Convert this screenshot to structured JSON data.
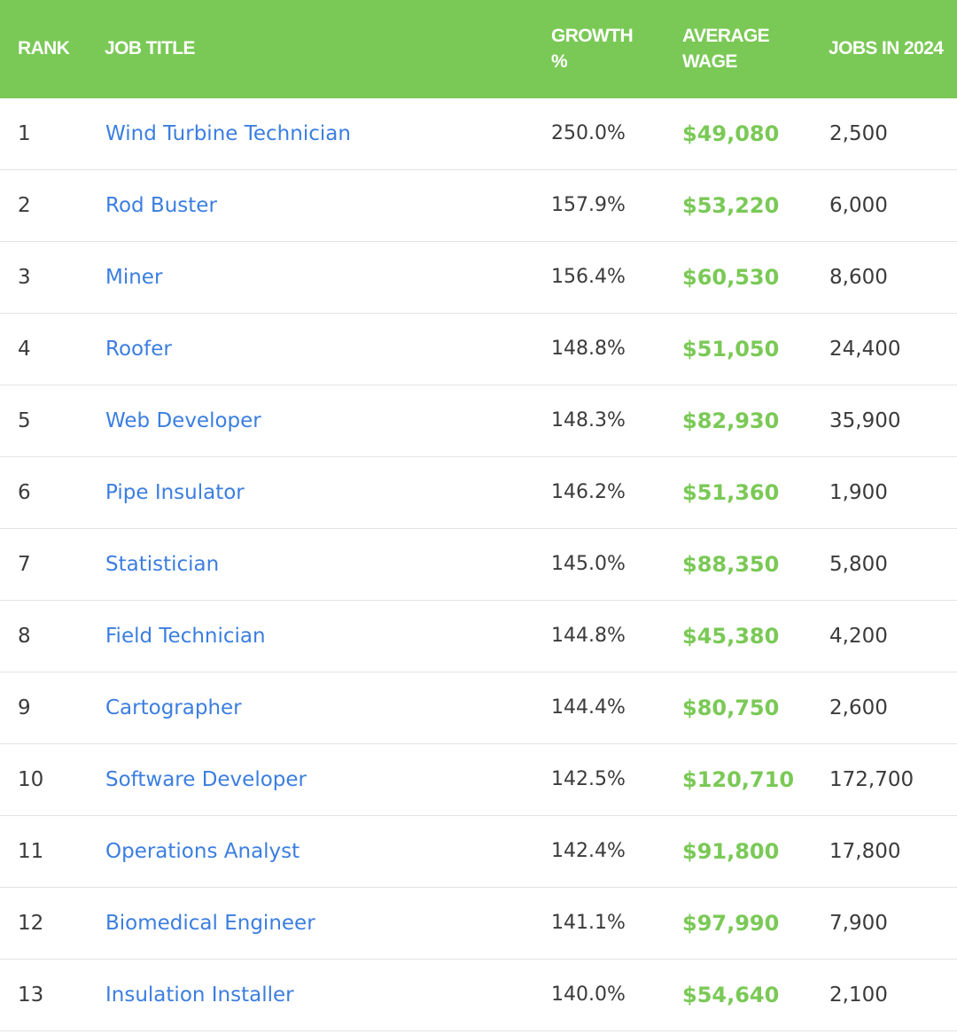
{
  "columns": {
    "rank": "RANK",
    "title": "JOB TITLE",
    "growth": "GROWTH\n%",
    "wage": "AVERAGE\nWAGE",
    "jobs": "JOBS IN 2024"
  },
  "rows": [
    {
      "rank": "1",
      "title": "Wind Turbine Technician",
      "growth": "250.0%",
      "wage": "$49,080",
      "jobs": "2,500"
    },
    {
      "rank": "2",
      "title": "Rod Buster",
      "growth": "157.9%",
      "wage": "$53,220",
      "jobs": "6,000"
    },
    {
      "rank": "3",
      "title": "Miner",
      "growth": "156.4%",
      "wage": "$60,530",
      "jobs": "8,600"
    },
    {
      "rank": "4",
      "title": "Roofer",
      "growth": "148.8%",
      "wage": "$51,050",
      "jobs": "24,400"
    },
    {
      "rank": "5",
      "title": "Web Developer",
      "growth": "148.3%",
      "wage": "$82,930",
      "jobs": "35,900"
    },
    {
      "rank": "6",
      "title": "Pipe Insulator",
      "growth": "146.2%",
      "wage": "$51,360",
      "jobs": "1,900"
    },
    {
      "rank": "7",
      "title": "Statistician",
      "growth": "145.0%",
      "wage": "$88,350",
      "jobs": "5,800"
    },
    {
      "rank": "8",
      "title": "Field Technician",
      "growth": "144.8%",
      "wage": "$45,380",
      "jobs": "4,200"
    },
    {
      "rank": "9",
      "title": "Cartographer",
      "growth": "144.4%",
      "wage": "$80,750",
      "jobs": "2,600"
    },
    {
      "rank": "10",
      "title": "Software Developer",
      "growth": "142.5%",
      "wage": "$120,710",
      "jobs": "172,700"
    },
    {
      "rank": "11",
      "title": "Operations Analyst",
      "growth": "142.4%",
      "wage": "$91,800",
      "jobs": "17,800"
    },
    {
      "rank": "12",
      "title": "Biomedical Engineer",
      "growth": "141.1%",
      "wage": "$97,990",
      "jobs": "7,900"
    },
    {
      "rank": "13",
      "title": "Insulation Installer",
      "growth": "140.0%",
      "wage": "$54,640",
      "jobs": "2,100"
    }
  ],
  "colors": {
    "header_bg": "#7ac956",
    "link": "#3b7ee0",
    "wage": "#7ac956",
    "text": "#3b3b3b"
  }
}
